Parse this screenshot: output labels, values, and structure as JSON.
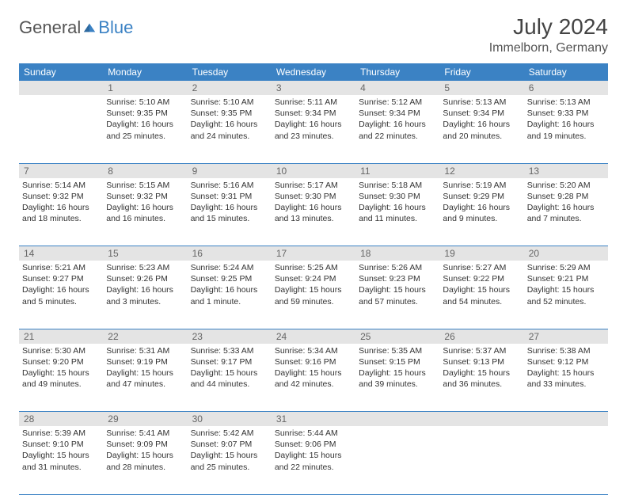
{
  "brand": {
    "part1": "General",
    "part2": "Blue"
  },
  "title": "July 2024",
  "location": "Immelborn, Germany",
  "colors": {
    "header_bg": "#3b82c4",
    "header_text": "#ffffff",
    "daynum_bg": "#e4e4e4",
    "daynum_text": "#666666",
    "rule": "#3b82c4",
    "body_text": "#333333",
    "background": "#ffffff"
  },
  "typography": {
    "title_fontsize": 28,
    "location_fontsize": 16,
    "dayheader_fontsize": 12,
    "daynum_fontsize": 12,
    "cell_fontsize": 10.5
  },
  "day_headers": [
    "Sunday",
    "Monday",
    "Tuesday",
    "Wednesday",
    "Thursday",
    "Friday",
    "Saturday"
  ],
  "weeks": [
    {
      "nums": [
        "",
        "1",
        "2",
        "3",
        "4",
        "5",
        "6"
      ],
      "cells": [
        {
          "sunrise": "",
          "sunset": "",
          "daylight": ""
        },
        {
          "sunrise": "Sunrise: 5:10 AM",
          "sunset": "Sunset: 9:35 PM",
          "daylight": "Daylight: 16 hours and 25 minutes."
        },
        {
          "sunrise": "Sunrise: 5:10 AM",
          "sunset": "Sunset: 9:35 PM",
          "daylight": "Daylight: 16 hours and 24 minutes."
        },
        {
          "sunrise": "Sunrise: 5:11 AM",
          "sunset": "Sunset: 9:34 PM",
          "daylight": "Daylight: 16 hours and 23 minutes."
        },
        {
          "sunrise": "Sunrise: 5:12 AM",
          "sunset": "Sunset: 9:34 PM",
          "daylight": "Daylight: 16 hours and 22 minutes."
        },
        {
          "sunrise": "Sunrise: 5:13 AM",
          "sunset": "Sunset: 9:34 PM",
          "daylight": "Daylight: 16 hours and 20 minutes."
        },
        {
          "sunrise": "Sunrise: 5:13 AM",
          "sunset": "Sunset: 9:33 PM",
          "daylight": "Daylight: 16 hours and 19 minutes."
        }
      ]
    },
    {
      "nums": [
        "7",
        "8",
        "9",
        "10",
        "11",
        "12",
        "13"
      ],
      "cells": [
        {
          "sunrise": "Sunrise: 5:14 AM",
          "sunset": "Sunset: 9:32 PM",
          "daylight": "Daylight: 16 hours and 18 minutes."
        },
        {
          "sunrise": "Sunrise: 5:15 AM",
          "sunset": "Sunset: 9:32 PM",
          "daylight": "Daylight: 16 hours and 16 minutes."
        },
        {
          "sunrise": "Sunrise: 5:16 AM",
          "sunset": "Sunset: 9:31 PM",
          "daylight": "Daylight: 16 hours and 15 minutes."
        },
        {
          "sunrise": "Sunrise: 5:17 AM",
          "sunset": "Sunset: 9:30 PM",
          "daylight": "Daylight: 16 hours and 13 minutes."
        },
        {
          "sunrise": "Sunrise: 5:18 AM",
          "sunset": "Sunset: 9:30 PM",
          "daylight": "Daylight: 16 hours and 11 minutes."
        },
        {
          "sunrise": "Sunrise: 5:19 AM",
          "sunset": "Sunset: 9:29 PM",
          "daylight": "Daylight: 16 hours and 9 minutes."
        },
        {
          "sunrise": "Sunrise: 5:20 AM",
          "sunset": "Sunset: 9:28 PM",
          "daylight": "Daylight: 16 hours and 7 minutes."
        }
      ]
    },
    {
      "nums": [
        "14",
        "15",
        "16",
        "17",
        "18",
        "19",
        "20"
      ],
      "cells": [
        {
          "sunrise": "Sunrise: 5:21 AM",
          "sunset": "Sunset: 9:27 PM",
          "daylight": "Daylight: 16 hours and 5 minutes."
        },
        {
          "sunrise": "Sunrise: 5:23 AM",
          "sunset": "Sunset: 9:26 PM",
          "daylight": "Daylight: 16 hours and 3 minutes."
        },
        {
          "sunrise": "Sunrise: 5:24 AM",
          "sunset": "Sunset: 9:25 PM",
          "daylight": "Daylight: 16 hours and 1 minute."
        },
        {
          "sunrise": "Sunrise: 5:25 AM",
          "sunset": "Sunset: 9:24 PM",
          "daylight": "Daylight: 15 hours and 59 minutes."
        },
        {
          "sunrise": "Sunrise: 5:26 AM",
          "sunset": "Sunset: 9:23 PM",
          "daylight": "Daylight: 15 hours and 57 minutes."
        },
        {
          "sunrise": "Sunrise: 5:27 AM",
          "sunset": "Sunset: 9:22 PM",
          "daylight": "Daylight: 15 hours and 54 minutes."
        },
        {
          "sunrise": "Sunrise: 5:29 AM",
          "sunset": "Sunset: 9:21 PM",
          "daylight": "Daylight: 15 hours and 52 minutes."
        }
      ]
    },
    {
      "nums": [
        "21",
        "22",
        "23",
        "24",
        "25",
        "26",
        "27"
      ],
      "cells": [
        {
          "sunrise": "Sunrise: 5:30 AM",
          "sunset": "Sunset: 9:20 PM",
          "daylight": "Daylight: 15 hours and 49 minutes."
        },
        {
          "sunrise": "Sunrise: 5:31 AM",
          "sunset": "Sunset: 9:19 PM",
          "daylight": "Daylight: 15 hours and 47 minutes."
        },
        {
          "sunrise": "Sunrise: 5:33 AM",
          "sunset": "Sunset: 9:17 PM",
          "daylight": "Daylight: 15 hours and 44 minutes."
        },
        {
          "sunrise": "Sunrise: 5:34 AM",
          "sunset": "Sunset: 9:16 PM",
          "daylight": "Daylight: 15 hours and 42 minutes."
        },
        {
          "sunrise": "Sunrise: 5:35 AM",
          "sunset": "Sunset: 9:15 PM",
          "daylight": "Daylight: 15 hours and 39 minutes."
        },
        {
          "sunrise": "Sunrise: 5:37 AM",
          "sunset": "Sunset: 9:13 PM",
          "daylight": "Daylight: 15 hours and 36 minutes."
        },
        {
          "sunrise": "Sunrise: 5:38 AM",
          "sunset": "Sunset: 9:12 PM",
          "daylight": "Daylight: 15 hours and 33 minutes."
        }
      ]
    },
    {
      "nums": [
        "28",
        "29",
        "30",
        "31",
        "",
        "",
        ""
      ],
      "cells": [
        {
          "sunrise": "Sunrise: 5:39 AM",
          "sunset": "Sunset: 9:10 PM",
          "daylight": "Daylight: 15 hours and 31 minutes."
        },
        {
          "sunrise": "Sunrise: 5:41 AM",
          "sunset": "Sunset: 9:09 PM",
          "daylight": "Daylight: 15 hours and 28 minutes."
        },
        {
          "sunrise": "Sunrise: 5:42 AM",
          "sunset": "Sunset: 9:07 PM",
          "daylight": "Daylight: 15 hours and 25 minutes."
        },
        {
          "sunrise": "Sunrise: 5:44 AM",
          "sunset": "Sunset: 9:06 PM",
          "daylight": "Daylight: 15 hours and 22 minutes."
        },
        {
          "sunrise": "",
          "sunset": "",
          "daylight": ""
        },
        {
          "sunrise": "",
          "sunset": "",
          "daylight": ""
        },
        {
          "sunrise": "",
          "sunset": "",
          "daylight": ""
        }
      ]
    }
  ]
}
